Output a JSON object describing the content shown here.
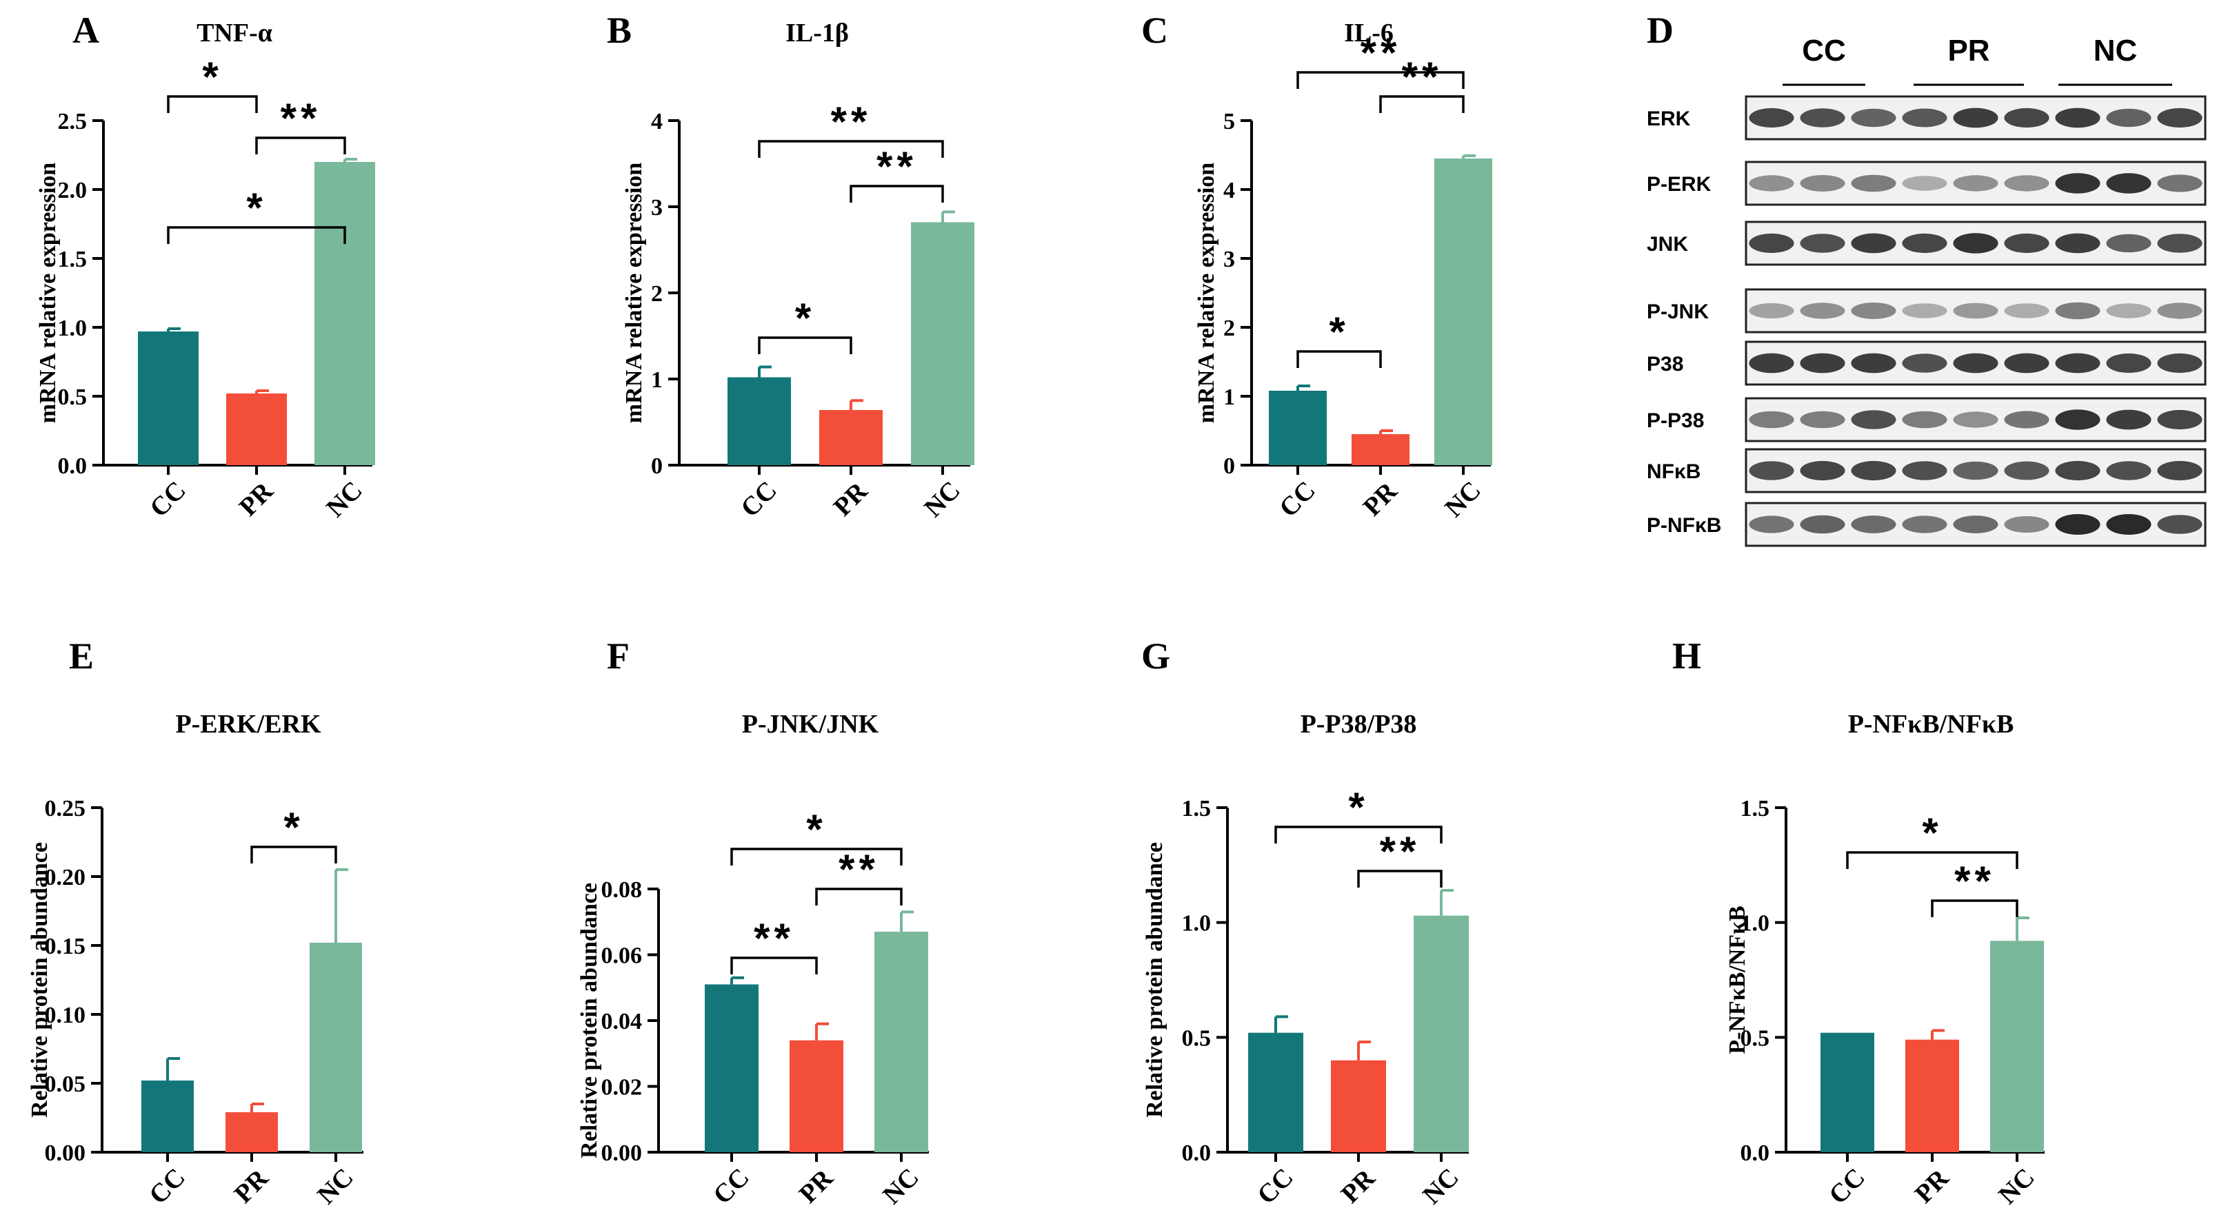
{
  "colors": {
    "CC": "#13777A",
    "PR": "#F24E3A",
    "NC": "#79B89A"
  },
  "chart_data": [
    {
      "panel": "A",
      "type": "bar",
      "title": "TNF-α",
      "ylabel": "mRNA relative expression",
      "categories": [
        "CC",
        "PR",
        "NC"
      ],
      "values": [
        0.97,
        0.52,
        2.2
      ],
      "errors": [
        0.02,
        0.02,
        0.02
      ],
      "ylim": [
        0,
        2.5
      ],
      "yticks": [
        "0.0",
        "0.5",
        "1.0",
        "1.5",
        "2.0",
        "2.5"
      ],
      "significance": [
        {
          "from": "CC",
          "to": "PR",
          "label": "*"
        },
        {
          "from": "PR",
          "to": "NC",
          "label": "**"
        },
        {
          "from": "CC",
          "to": "NC",
          "label": "*"
        }
      ]
    },
    {
      "panel": "B",
      "type": "bar",
      "title": "IL-1β",
      "ylabel": "mRNA relative expression",
      "categories": [
        "CC",
        "PR",
        "NC"
      ],
      "values": [
        1.02,
        0.64,
        2.82
      ],
      "errors": [
        0.12,
        0.11,
        0.12
      ],
      "ylim": [
        0,
        4
      ],
      "yticks": [
        "0",
        "1",
        "2",
        "3",
        "4"
      ],
      "significance": [
        {
          "from": "CC",
          "to": "PR",
          "label": "*"
        },
        {
          "from": "PR",
          "to": "NC",
          "label": "**"
        },
        {
          "from": "CC",
          "to": "NC",
          "label": "**"
        }
      ]
    },
    {
      "panel": "C",
      "type": "bar",
      "title": "IL-6",
      "ylabel": "mRNA relative expression",
      "categories": [
        "CC",
        "PR",
        "NC"
      ],
      "values": [
        1.08,
        0.45,
        4.45
      ],
      "errors": [
        0.07,
        0.05,
        0.04
      ],
      "ylim": [
        0,
        5
      ],
      "yticks": [
        "0",
        "1",
        "2",
        "3",
        "4",
        "5"
      ],
      "significance": [
        {
          "from": "CC",
          "to": "PR",
          "label": "*"
        },
        {
          "from": "PR",
          "to": "NC",
          "label": "**"
        },
        {
          "from": "CC",
          "to": "NC",
          "label": "**"
        }
      ]
    },
    {
      "panel": "E",
      "type": "bar",
      "title": "P-ERK/ERK",
      "ylabel": "Relative protein abundance",
      "categories": [
        "CC",
        "PR",
        "NC"
      ],
      "values": [
        0.052,
        0.029,
        0.152
      ],
      "errors": [
        0.016,
        0.006,
        0.053
      ],
      "ylim": [
        0,
        0.25
      ],
      "yticks": [
        "0.00",
        "0.05",
        "0.10",
        "0.15",
        "0.20",
        "0.25"
      ],
      "significance": [
        {
          "from": "PR",
          "to": "NC",
          "label": "*"
        }
      ]
    },
    {
      "panel": "F",
      "type": "bar",
      "title": "P-JNK/JNK",
      "ylabel": "Relative protein abundance",
      "categories": [
        "CC",
        "PR",
        "NC"
      ],
      "values": [
        0.051,
        0.034,
        0.067
      ],
      "errors": [
        0.002,
        0.005,
        0.006
      ],
      "ylim": [
        0,
        0.08
      ],
      "yticks": [
        "0.00",
        "0.02",
        "0.04",
        "0.06",
        "0.08"
      ],
      "significance": [
        {
          "from": "CC",
          "to": "PR",
          "label": "**"
        },
        {
          "from": "PR",
          "to": "NC",
          "label": "**"
        },
        {
          "from": "CC",
          "to": "NC",
          "label": "*"
        }
      ]
    },
    {
      "panel": "G",
      "type": "bar",
      "title": "P-P38/P38",
      "ylabel": "Relative protein abundance",
      "categories": [
        "CC",
        "PR",
        "NC"
      ],
      "values": [
        0.52,
        0.4,
        1.03
      ],
      "errors": [
        0.07,
        0.08,
        0.11
      ],
      "ylim": [
        0,
        1.5
      ],
      "yticks": [
        "0.0",
        "0.5",
        "1.0",
        "1.5"
      ],
      "significance": [
        {
          "from": "PR",
          "to": "NC",
          "label": "**"
        },
        {
          "from": "CC",
          "to": "NC",
          "label": "*"
        }
      ]
    },
    {
      "panel": "H",
      "type": "bar",
      "title": "P-NFκB/NFκB",
      "ylabel": "P-NFκB/NFκB",
      "categories": [
        "CC",
        "PR",
        "NC"
      ],
      "values": [
        0.52,
        0.49,
        0.92
      ],
      "errors": [
        0.0,
        0.04,
        0.1
      ],
      "ylim": [
        0,
        1.5
      ],
      "yticks": [
        "0.0",
        "0.5",
        "1.0",
        "1.5"
      ],
      "significance": [
        {
          "from": "PR",
          "to": "NC",
          "label": "**"
        },
        {
          "from": "CC",
          "to": "NC",
          "label": "*"
        }
      ]
    }
  ],
  "western_blot": {
    "panel": "D",
    "groups": [
      "CC",
      "PR",
      "NC"
    ],
    "rows": [
      {
        "label": "ERK",
        "intensity": [
          0.85,
          0.8,
          0.7,
          0.75,
          0.9,
          0.85,
          0.9,
          0.7,
          0.85
        ]
      },
      {
        "label": "P-ERK",
        "intensity": [
          0.45,
          0.5,
          0.55,
          0.3,
          0.45,
          0.45,
          0.95,
          0.95,
          0.6
        ]
      },
      {
        "label": "JNK",
        "intensity": [
          0.85,
          0.8,
          0.9,
          0.85,
          0.95,
          0.85,
          0.9,
          0.7,
          0.8
        ]
      },
      {
        "label": "P-JNK",
        "intensity": [
          0.35,
          0.45,
          0.5,
          0.3,
          0.4,
          0.3,
          0.55,
          0.3,
          0.45
        ]
      },
      {
        "label": "P38",
        "intensity": [
          0.9,
          0.9,
          0.9,
          0.8,
          0.9,
          0.9,
          0.9,
          0.85,
          0.85
        ]
      },
      {
        "label": "P-P38",
        "intensity": [
          0.55,
          0.55,
          0.8,
          0.55,
          0.45,
          0.6,
          0.95,
          0.9,
          0.85
        ]
      },
      {
        "label": "NFκB",
        "intensity": [
          0.8,
          0.85,
          0.85,
          0.8,
          0.7,
          0.75,
          0.85,
          0.8,
          0.85
        ]
      },
      {
        "label": "P-NFκB",
        "intensity": [
          0.6,
          0.7,
          0.65,
          0.6,
          0.65,
          0.5,
          1.0,
          1.0,
          0.8
        ]
      }
    ]
  }
}
